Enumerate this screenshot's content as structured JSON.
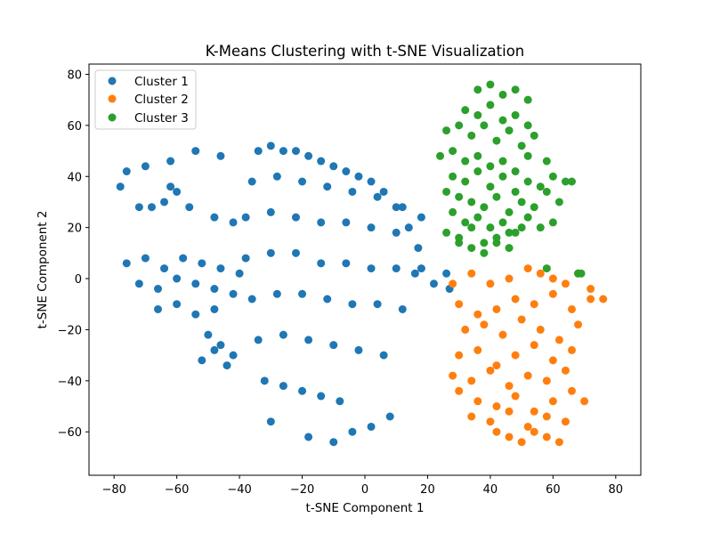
{
  "chart_data": {
    "type": "scatter",
    "title": "K-Means Clustering with t-SNE Visualization",
    "xlabel": "t-SNE Component 1",
    "ylabel": "t-SNE Component 2",
    "xlim": [
      -88,
      88
    ],
    "ylim": [
      -77,
      84
    ],
    "xticks": [
      -80,
      -60,
      -40,
      -20,
      0,
      20,
      40,
      60,
      80
    ],
    "yticks": [
      -60,
      -40,
      -20,
      0,
      20,
      40,
      60,
      80
    ],
    "xtick_labels": [
      "−80",
      "−60",
      "−40",
      "−20",
      "0",
      "20",
      "40",
      "60",
      "80"
    ],
    "ytick_labels": [
      "−60",
      "−40",
      "−20",
      "0",
      "20",
      "40",
      "60",
      "80"
    ],
    "grid": false,
    "legend_position": "top-left",
    "series": [
      {
        "name": "Cluster 1",
        "color": "#1f77b4",
        "x": [
          -34,
          -30,
          -26,
          -22,
          -18,
          -14,
          -10,
          -6,
          -2,
          2,
          6,
          10,
          14,
          17,
          -36,
          -28,
          -20,
          -12,
          -4,
          4,
          12,
          18,
          -38,
          -30,
          -22,
          -14,
          -6,
          2,
          10,
          -38,
          -30,
          -22,
          -14,
          -6,
          2,
          10,
          16,
          -36,
          -28,
          -20,
          -12,
          -4,
          4,
          12,
          -34,
          -26,
          -18,
          -10,
          -2,
          6,
          -32,
          -26,
          -20,
          -14,
          -8,
          -46,
          -54,
          -62,
          -70,
          -76,
          -78,
          -60,
          -64,
          -68,
          -72,
          -62,
          -56,
          -48,
          -42,
          -76,
          -70,
          -64,
          -58,
          -52,
          -46,
          -40,
          -72,
          -66,
          -60,
          -54,
          -48,
          -42,
          -66,
          -60,
          -54,
          -48,
          -50,
          -46,
          -42,
          -52,
          -48,
          -44,
          -30,
          -18,
          -10,
          -4,
          2,
          8,
          18,
          22,
          26,
          27
        ],
        "y": [
          50,
          52,
          50,
          50,
          48,
          46,
          44,
          42,
          40,
          38,
          34,
          28,
          20,
          12,
          38,
          40,
          38,
          36,
          34,
          32,
          28,
          24,
          24,
          26,
          24,
          22,
          22,
          20,
          18,
          8,
          10,
          10,
          6,
          6,
          4,
          4,
          2,
          -8,
          -6,
          -6,
          -8,
          -10,
          -10,
          -12,
          -24,
          -22,
          -24,
          -26,
          -28,
          -30,
          -40,
          -42,
          -44,
          -46,
          -48,
          48,
          50,
          46,
          44,
          42,
          36,
          34,
          30,
          28,
          28,
          36,
          28,
          24,
          22,
          6,
          8,
          4,
          8,
          6,
          4,
          2,
          -2,
          -4,
          0,
          -2,
          -4,
          -6,
          -12,
          -10,
          -14,
          -12,
          -22,
          -26,
          -30,
          -32,
          -28,
          -34,
          -56,
          -62,
          -64,
          -60,
          -58,
          -54,
          4,
          -2,
          2,
          -4
        ]
      },
      {
        "name": "Cluster 2",
        "color": "#ff7f0e",
        "x": [
          28,
          34,
          40,
          46,
          52,
          56,
          60,
          64,
          68,
          72,
          76,
          30,
          36,
          42,
          48,
          54,
          60,
          66,
          72,
          32,
          38,
          44,
          50,
          56,
          62,
          68,
          30,
          36,
          42,
          48,
          54,
          60,
          66,
          28,
          34,
          40,
          46,
          52,
          58,
          64,
          30,
          36,
          42,
          48,
          54,
          60,
          66,
          70,
          34,
          40,
          46,
          52,
          58,
          64,
          42,
          46,
          50,
          54,
          58,
          62
        ],
        "y": [
          -2,
          2,
          -2,
          0,
          4,
          2,
          0,
          -2,
          2,
          -4,
          -8,
          -10,
          -14,
          -12,
          -8,
          -10,
          -6,
          -12,
          -8,
          -20,
          -18,
          -22,
          -16,
          -20,
          -24,
          -18,
          -30,
          -28,
          -34,
          -30,
          -26,
          -32,
          -28,
          -38,
          -40,
          -36,
          -42,
          -38,
          -40,
          -36,
          -44,
          -48,
          -50,
          -46,
          -52,
          -48,
          -44,
          -48,
          -54,
          -56,
          -52,
          -58,
          -54,
          -56,
          -60,
          -62,
          -64,
          -60,
          -62,
          -64
        ]
      },
      {
        "name": "Cluster 3",
        "color": "#2ca02c",
        "x": [
          36,
          40,
          44,
          48,
          52,
          32,
          36,
          40,
          44,
          48,
          52,
          26,
          30,
          34,
          38,
          42,
          46,
          50,
          54,
          24,
          28,
          32,
          36,
          40,
          44,
          48,
          52,
          58,
          28,
          32,
          36,
          40,
          44,
          48,
          52,
          56,
          60,
          64,
          26,
          30,
          34,
          38,
          42,
          46,
          50,
          54,
          58,
          62,
          66,
          28,
          32,
          36,
          40,
          44,
          48,
          52,
          56,
          60,
          26,
          30,
          34,
          38,
          42,
          46,
          50,
          30,
          34,
          38,
          42,
          46,
          58,
          68,
          69
        ],
        "y": [
          74,
          76,
          72,
          74,
          70,
          66,
          64,
          68,
          62,
          64,
          60,
          58,
          60,
          56,
          60,
          54,
          58,
          52,
          56,
          48,
          50,
          46,
          48,
          44,
          46,
          42,
          48,
          46,
          40,
          38,
          42,
          36,
          40,
          34,
          38,
          36,
          40,
          38,
          34,
          32,
          30,
          28,
          32,
          26,
          30,
          28,
          34,
          30,
          38,
          26,
          22,
          24,
          20,
          22,
          18,
          24,
          20,
          22,
          18,
          16,
          20,
          14,
          16,
          18,
          20,
          14,
          12,
          10,
          14,
          12,
          4,
          2,
          2
        ]
      }
    ]
  }
}
